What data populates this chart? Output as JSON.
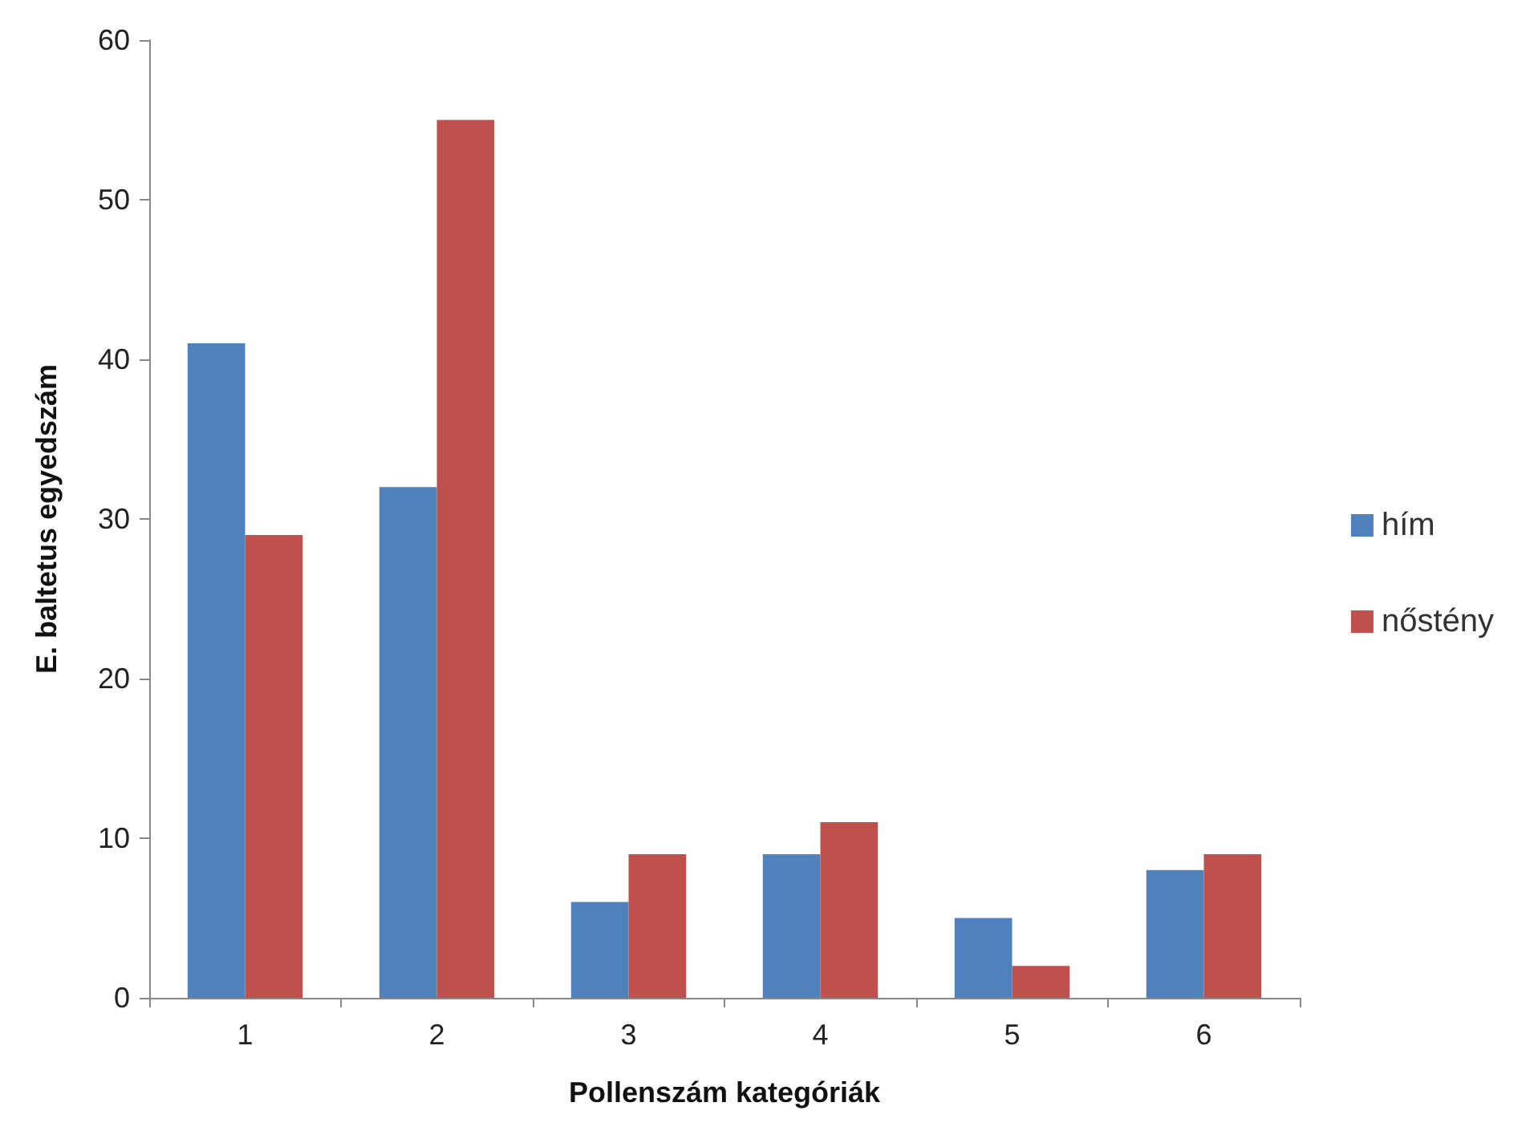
{
  "chart_data": {
    "type": "bar",
    "xlabel": "Pollenszám kategóriák",
    "ylabel": "E. baltetus egyedszám",
    "categories": [
      "1",
      "2",
      "3",
      "4",
      "5",
      "6"
    ],
    "series": [
      {
        "name": "hím",
        "color": "#4f81bd",
        "values": [
          41,
          32,
          6,
          9,
          5,
          8
        ]
      },
      {
        "name": "nőstény",
        "color": "#c0504d",
        "values": [
          29,
          55,
          9,
          11,
          2,
          9
        ]
      }
    ],
    "ylim": [
      0,
      60
    ],
    "yticks": [
      0,
      10,
      20,
      30,
      40,
      50,
      60
    ],
    "grid": false,
    "legend": "right"
  }
}
